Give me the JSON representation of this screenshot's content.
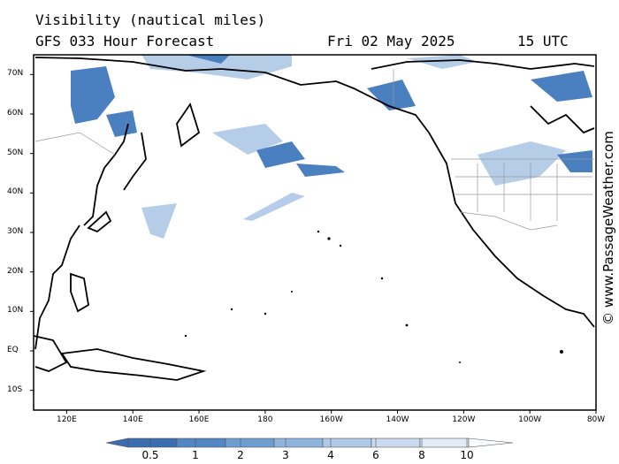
{
  "header": {
    "title": "Visibility (nautical miles)",
    "model": "GFS 033 Hour Forecast",
    "date": "Fri 02 May 2025",
    "time": "15 UTC"
  },
  "credit": "© www.PassageWeather.com",
  "lat_labels": [
    {
      "label": "70N",
      "lat": 70
    },
    {
      "label": "60N",
      "lat": 60
    },
    {
      "label": "50N",
      "lat": 50
    },
    {
      "label": "40N",
      "lat": 40
    },
    {
      "label": "30N",
      "lat": 30
    },
    {
      "label": "20N",
      "lat": 20
    },
    {
      "label": "10N",
      "lat": 10
    },
    {
      "label": "EQ",
      "lat": 0
    },
    {
      "label": "10S",
      "lat": -10
    }
  ],
  "lon_labels": [
    {
      "label": "120E",
      "lon": 120
    },
    {
      "label": "140E",
      "lon": 140
    },
    {
      "label": "160E",
      "lon": 160
    },
    {
      "label": "180",
      "lon": 180
    },
    {
      "label": "160W",
      "lon": 200
    },
    {
      "label": "140W",
      "lon": 220
    },
    {
      "label": "120W",
      "lon": 240
    },
    {
      "label": "100W",
      "lon": 260
    },
    {
      "label": "80W",
      "lon": 280
    }
  ],
  "legend": {
    "labels": [
      "0.5",
      "1",
      "2",
      "3",
      "4",
      "6",
      "8",
      "10"
    ],
    "colors": [
      "#3a6eb0",
      "#5287c3",
      "#6e9dd0",
      "#8fb4dc",
      "#afc9e7",
      "#cadbef",
      "#e2ebf6",
      "#f8fafd"
    ]
  }
}
